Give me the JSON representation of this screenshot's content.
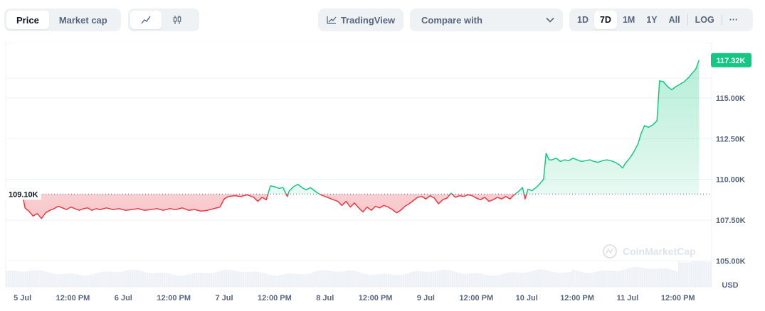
{
  "toolbar": {
    "type_tabs": [
      {
        "label": "Price",
        "active": true
      },
      {
        "label": "Market cap",
        "active": false
      }
    ],
    "style_icons": [
      "line-chart-icon",
      "candlestick-icon"
    ],
    "tradingview_label": "TradingView",
    "compare_label": "Compare with",
    "ranges": [
      {
        "label": "1D",
        "active": false
      },
      {
        "label": "7D",
        "active": true
      },
      {
        "label": "1M",
        "active": false
      },
      {
        "label": "1Y",
        "active": false
      },
      {
        "label": "All",
        "active": false
      }
    ],
    "log_label": "LOG",
    "more_label": "···"
  },
  "chart_data": {
    "type": "area",
    "title": "",
    "ylabel": "USD",
    "y_ticks": [
      "105.00K",
      "107.50K",
      "110.00K",
      "112.50K",
      "115.00K"
    ],
    "y_tick_values": [
      105000,
      107500,
      110000,
      112500,
      115000
    ],
    "ylim": [
      103400,
      118400
    ],
    "x_ticks": [
      "5 Jul",
      "12:00 PM",
      "6 Jul",
      "12:00 PM",
      "7 Jul",
      "12:00 PM",
      "8 Jul",
      "12:00 PM",
      "9 Jul",
      "12:00 PM",
      "10 Jul",
      "12:00 PM",
      "11 Jul",
      "12:00 PM"
    ],
    "x_tick_hours": [
      0,
      12,
      24,
      36,
      48,
      60,
      72,
      84,
      96,
      108,
      120,
      132,
      144,
      156
    ],
    "xlim_hours": [
      -4,
      164
    ],
    "baseline": {
      "value": 109100,
      "label": "109.10K"
    },
    "last_price": {
      "value": 117320,
      "label": "117.32K"
    },
    "colors": {
      "up": "#16c784",
      "down": "#ea3943",
      "badge": "#16c784"
    },
    "watermark": "CoinMarketCap",
    "series": [
      {
        "points": [
          [
            0.1,
            108900
          ],
          [
            0.6,
            108250
          ],
          [
            1.5,
            108050
          ],
          [
            2.5,
            107750
          ],
          [
            3.5,
            107900
          ],
          [
            4.5,
            107600
          ],
          [
            5.5,
            107950
          ],
          [
            6.5,
            108100
          ],
          [
            7.5,
            108200
          ],
          [
            8.5,
            108350
          ],
          [
            9.5,
            108250
          ],
          [
            10.5,
            108150
          ],
          [
            11.5,
            108300
          ],
          [
            12.5,
            108200
          ],
          [
            13.5,
            108100
          ],
          [
            14.5,
            108200
          ],
          [
            15.5,
            108250
          ],
          [
            16.5,
            108100
          ],
          [
            17.5,
            108200
          ],
          [
            18.5,
            108150
          ],
          [
            20,
            108250
          ],
          [
            21.5,
            108150
          ],
          [
            23,
            108200
          ],
          [
            24.5,
            108100
          ],
          [
            26,
            108150
          ],
          [
            27.5,
            108200
          ],
          [
            29,
            108100
          ],
          [
            30.5,
            108150
          ],
          [
            32,
            108200
          ],
          [
            33.5,
            108100
          ],
          [
            35,
            108200
          ],
          [
            36.5,
            108150
          ],
          [
            38,
            108250
          ],
          [
            39.5,
            108100
          ],
          [
            41,
            108150
          ],
          [
            42.5,
            108050
          ],
          [
            44,
            108100
          ],
          [
            45.5,
            108200
          ],
          [
            47,
            108300
          ],
          [
            48,
            108800
          ],
          [
            49,
            108950
          ],
          [
            50.5,
            109000
          ],
          [
            52,
            108950
          ],
          [
            53.5,
            109050
          ],
          [
            55,
            108900
          ],
          [
            56,
            108650
          ],
          [
            57,
            108900
          ],
          [
            58,
            108750
          ],
          [
            59,
            109600
          ],
          [
            60,
            109550
          ],
          [
            61,
            109450
          ],
          [
            62,
            109500
          ],
          [
            63,
            108950
          ],
          [
            63.5,
            109300
          ],
          [
            64.5,
            109550
          ],
          [
            65.5,
            109700
          ],
          [
            66.5,
            109500
          ],
          [
            67.5,
            109350
          ],
          [
            68.5,
            109500
          ],
          [
            70,
            109200
          ],
          [
            71,
            109050
          ],
          [
            72,
            108950
          ],
          [
            73.5,
            108800
          ],
          [
            75,
            108650
          ],
          [
            76,
            108400
          ],
          [
            77,
            108650
          ],
          [
            78,
            108300
          ],
          [
            79,
            108550
          ],
          [
            80,
            108250
          ],
          [
            81,
            108000
          ],
          [
            82,
            108300
          ],
          [
            83,
            108100
          ],
          [
            84,
            108350
          ],
          [
            85,
            108250
          ],
          [
            86,
            108400
          ],
          [
            87,
            108300
          ],
          [
            88,
            108150
          ],
          [
            89,
            107950
          ],
          [
            90,
            108100
          ],
          [
            91,
            108350
          ],
          [
            92,
            108500
          ],
          [
            93,
            108700
          ],
          [
            94,
            108900
          ],
          [
            95,
            108950
          ],
          [
            96,
            108800
          ],
          [
            97,
            109000
          ],
          [
            98,
            108850
          ],
          [
            99,
            108500
          ],
          [
            100,
            108750
          ],
          [
            101,
            108850
          ],
          [
            102,
            109150
          ],
          [
            103,
            108900
          ],
          [
            104,
            109000
          ],
          [
            105,
            108950
          ],
          [
            106,
            109050
          ],
          [
            107,
            109000
          ],
          [
            108,
            108850
          ],
          [
            109,
            108750
          ],
          [
            110,
            108900
          ],
          [
            111,
            108650
          ],
          [
            112,
            108750
          ],
          [
            113,
            108900
          ],
          [
            114,
            108800
          ],
          [
            115,
            108950
          ],
          [
            116,
            108800
          ],
          [
            117,
            109050
          ],
          [
            118,
            109250
          ],
          [
            119,
            109500
          ],
          [
            119.6,
            108800
          ],
          [
            120.3,
            109400
          ],
          [
            121.2,
            109300
          ],
          [
            122.2,
            109500
          ],
          [
            123,
            109700
          ],
          [
            124,
            110000
          ],
          [
            124.6,
            111600
          ],
          [
            125.3,
            111200
          ],
          [
            126,
            111200
          ],
          [
            127,
            111300
          ],
          [
            128,
            111100
          ],
          [
            129,
            111200
          ],
          [
            130,
            111150
          ],
          [
            131,
            111300
          ],
          [
            132,
            111200
          ],
          [
            133,
            111100
          ],
          [
            134,
            111150
          ],
          [
            135,
            111200
          ],
          [
            136,
            111100
          ],
          [
            137,
            111050
          ],
          [
            138,
            111150
          ],
          [
            139,
            111200
          ],
          [
            140,
            111150
          ],
          [
            141,
            111050
          ],
          [
            142,
            110900
          ],
          [
            142.8,
            110700
          ],
          [
            143.5,
            111000
          ],
          [
            144.5,
            111300
          ],
          [
            145.5,
            111700
          ],
          [
            146.5,
            112200
          ],
          [
            147.2,
            112800
          ],
          [
            148,
            113300
          ],
          [
            149,
            113200
          ],
          [
            150,
            113350
          ],
          [
            151,
            113600
          ],
          [
            151.6,
            116050
          ],
          [
            152.5,
            116000
          ],
          [
            153.5,
            115700
          ],
          [
            154.5,
            115500
          ],
          [
            155.5,
            115700
          ],
          [
            156.5,
            115850
          ],
          [
            157.5,
            116000
          ],
          [
            158.5,
            116250
          ],
          [
            159.3,
            116500
          ],
          [
            160.2,
            116750
          ],
          [
            161,
            117320
          ]
        ]
      }
    ]
  }
}
